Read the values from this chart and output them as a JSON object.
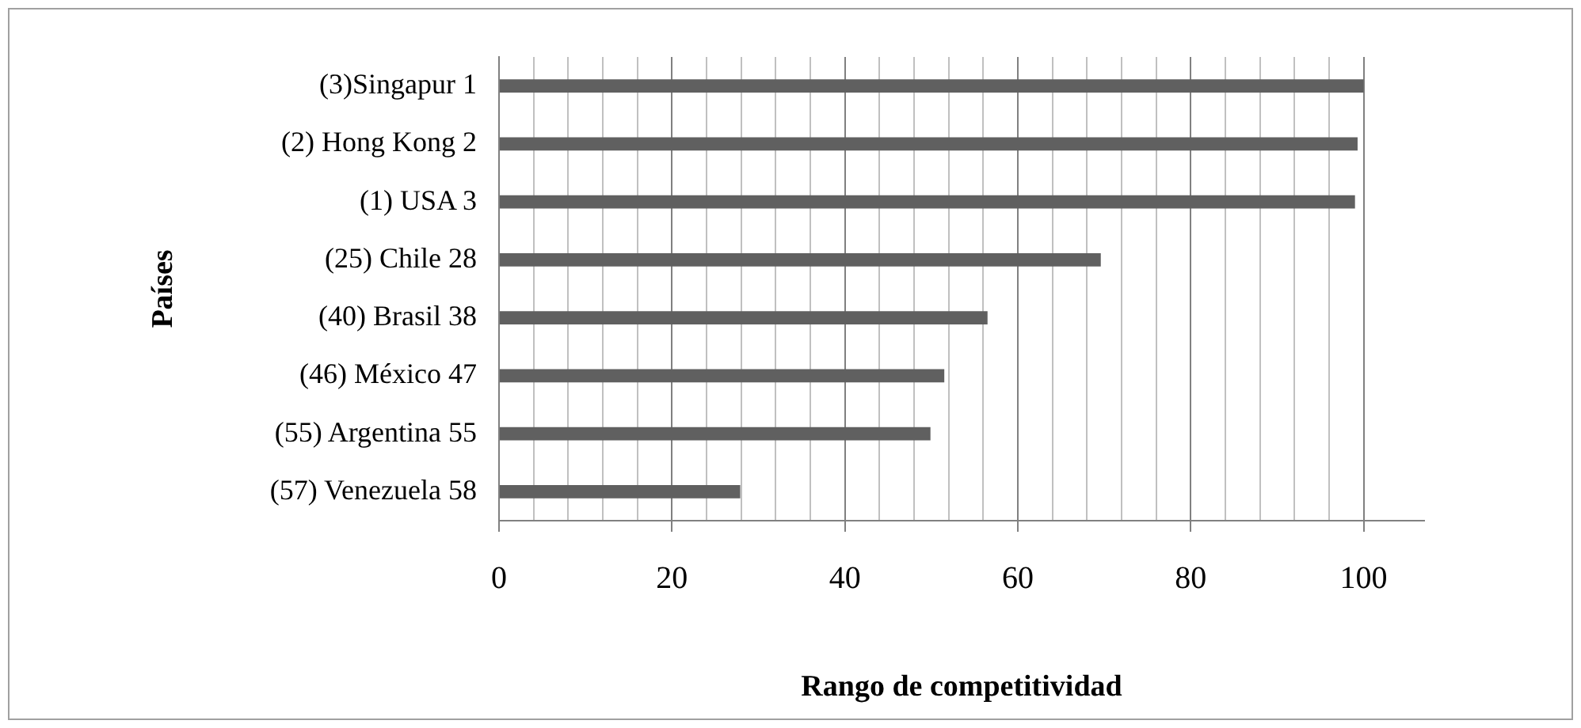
{
  "chart_data": {
    "type": "bar",
    "orientation": "horizontal",
    "xlabel": "Rango de competitividad",
    "ylabel": "Países",
    "categories": [
      "(3)Singapur 1",
      "(2) Hong Kong 2",
      "(1) USA 3",
      "(25) Chile 28",
      "(40) Brasil 38",
      "(46) México 47",
      "(55) Argentina 55",
      "(57) Venezuela 58"
    ],
    "values": [
      100,
      99.3,
      99,
      69.6,
      56.5,
      51.5,
      49.9,
      27.9
    ],
    "color": "#606060",
    "xlim": [
      0,
      107
    ],
    "xticks": [
      0,
      {
        "value": 4,
        "label": null
      },
      {
        "value": 8,
        "label": null
      },
      {
        "value": 12,
        "label": null
      },
      {
        "value": 16,
        "label": null
      },
      20,
      {
        "value": 24,
        "label": null
      },
      {
        "value": 28,
        "label": null
      },
      {
        "value": 32,
        "label": null
      },
      {
        "value": 36,
        "label": null
      },
      40,
      {
        "value": 44,
        "label": null
      },
      {
        "value": 48,
        "label": null
      },
      {
        "value": 52,
        "label": null
      },
      {
        "value": 56,
        "label": null
      },
      60,
      {
        "value": 64,
        "label": null
      },
      {
        "value": 68,
        "label": null
      },
      {
        "value": 72,
        "label": null
      },
      {
        "value": 76,
        "label": null
      },
      80,
      {
        "value": 84,
        "label": null
      },
      {
        "value": 88,
        "label": null
      },
      {
        "value": 92,
        "label": null
      },
      {
        "value": 96,
        "label": null
      },
      100
    ],
    "grid": "x",
    "legend": false
  }
}
